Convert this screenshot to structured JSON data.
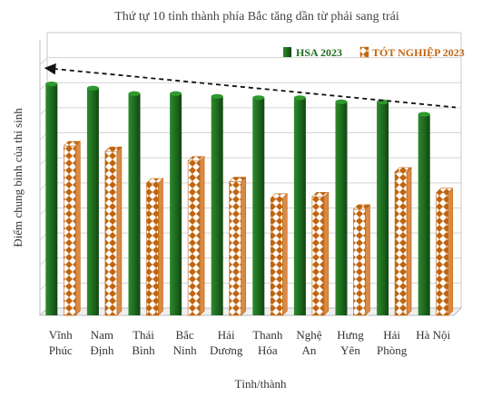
{
  "chart_data": {
    "type": "bar",
    "title": "Thứ tự 10 tỉnh thành phía Bắc tăng dần từ phải sang trái",
    "xlabel": "Tỉnh/thành",
    "ylabel": "Điểm chung bình  của thí sinh",
    "categories": [
      [
        "Vĩnh",
        "Phúc"
      ],
      [
        "Nam",
        "Định"
      ],
      [
        "Thái",
        "Bình"
      ],
      [
        "Bắc",
        "Ninh"
      ],
      [
        "Hải",
        "Dương"
      ],
      [
        "Thanh",
        "Hóa"
      ],
      [
        "Nghệ",
        "An"
      ],
      [
        "Hưng",
        "Yên"
      ],
      [
        "Hải",
        "Phòng"
      ],
      [
        "Hà Nội"
      ]
    ],
    "series": [
      {
        "name": "HSA 2023",
        "color": "#1e6b1e",
        "values": [
          8.4,
          8.25,
          8.05,
          8.05,
          7.95,
          7.9,
          7.9,
          7.75,
          7.75,
          7.3
        ]
      },
      {
        "name": "TÓT NGHIỆP 2023",
        "color": "#c0650f",
        "pattern": "diamond",
        "values": [
          6.15,
          5.95,
          4.8,
          5.6,
          4.85,
          4.25,
          4.3,
          3.85,
          5.2,
          4.45
        ]
      }
    ],
    "ylim": [
      0,
      10
    ],
    "grid": true,
    "legend": "top-right",
    "trend_line": {
      "style": "dashed-arrow",
      "from": 8.95,
      "to": 7.55
    }
  }
}
